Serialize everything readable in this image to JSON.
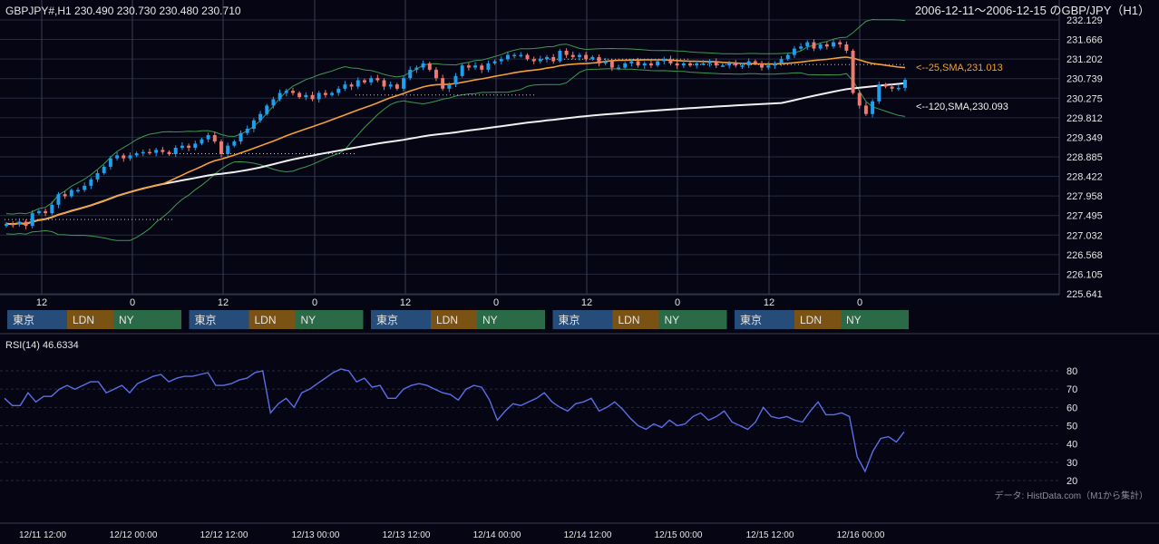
{
  "header": {
    "symbol_line": "GBPJPY#,H1 230.490 230.730 230.480 230.710",
    "range_title": "2006-12-11～2006-12-15 のGBP/JPY（H1）"
  },
  "colors": {
    "background": "#050514",
    "bull": "#1ea0f0",
    "bear": "#f07a6e",
    "sma25": "#f5a030",
    "sma120": "#f0f0f0",
    "bollinger": "#3c9a50",
    "rsi": "#5b6ee6",
    "grid": "#262a3e",
    "tokyo": "#264c7a",
    "london": "#7a5214",
    "newyork": "#2a6a46"
  },
  "sessions": {
    "tokyo": "東京",
    "london": "LDN",
    "newyork": "NY"
  },
  "price_axis": [
    "232.129",
    "231.666",
    "231.202",
    "230.739",
    "230.275",
    "229.812",
    "229.349",
    "228.885",
    "228.422",
    "227.958",
    "227.495",
    "227.032",
    "226.568",
    "226.105",
    "225.641"
  ],
  "hour_axis": [
    "12",
    "0",
    "12",
    "0",
    "12",
    "0",
    "12",
    "0",
    "12",
    "0"
  ],
  "date_axis": [
    "12/11 12:00",
    "12/12 00:00",
    "12/12 12:00",
    "12/13 00:00",
    "12/13 12:00",
    "12/14 00:00",
    "12/14 12:00",
    "12/15 00:00",
    "12/15 12:00",
    "12/16 00:00"
  ],
  "ma_labels": {
    "sma25": "<--25,SMA,231.013",
    "sma120": "<--120,SMA,230.093"
  },
  "rsi": {
    "label": "RSI(14) 46.6334",
    "ticks": [
      "80",
      "70",
      "60",
      "50",
      "40",
      "30",
      "20"
    ]
  },
  "source": "データ: HistData.com（M1から集計）",
  "chart_data": {
    "type": "candlestick",
    "title": "2006-12-11～2006-12-15 のGBP/JPY（H1）",
    "ylim": [
      225.641,
      232.129
    ],
    "close_series": [
      227.3,
      227.28,
      227.35,
      227.25,
      227.55,
      227.6,
      227.55,
      227.75,
      228.0,
      227.95,
      228.1,
      228.1,
      228.2,
      228.35,
      228.5,
      228.65,
      228.85,
      228.92,
      228.85,
      228.92,
      228.97,
      229.0,
      228.98,
      229.05,
      229.0,
      228.95,
      229.1,
      229.15,
      229.1,
      229.2,
      229.3,
      229.4,
      229.25,
      228.95,
      229.15,
      229.25,
      229.45,
      229.55,
      229.75,
      229.9,
      230.1,
      230.25,
      230.4,
      230.45,
      230.4,
      230.3,
      230.35,
      230.25,
      230.4,
      230.35,
      230.4,
      230.5,
      230.6,
      230.55,
      230.7,
      230.65,
      230.75,
      230.7,
      230.55,
      230.6,
      230.5,
      230.75,
      230.95,
      231.0,
      231.1,
      230.95,
      230.75,
      230.5,
      230.6,
      230.8,
      231.05,
      231.0,
      231.05,
      230.95,
      231.1,
      231.15,
      231.2,
      231.3,
      231.3,
      231.3,
      231.2,
      231.15,
      231.2,
      231.25,
      231.15,
      231.4,
      231.3,
      231.25,
      231.3,
      231.2,
      231.25,
      231.1,
      231.15,
      231.0,
      231.0,
      231.1,
      231.15,
      231.05,
      231.1,
      231.05,
      231.15,
      231.2,
      231.1,
      231.05,
      231.1,
      231.05,
      231.1,
      231.1,
      231.15,
      231.05,
      231.05,
      231.1,
      231.05,
      231.05,
      231.15,
      231.1,
      231.0,
      231.05,
      231.1,
      231.2,
      231.3,
      231.45,
      231.5,
      231.6,
      231.45,
      231.55,
      231.5,
      231.6,
      231.55,
      231.4,
      230.4,
      230.1,
      229.9,
      230.2,
      230.6,
      230.55,
      230.5,
      230.52,
      230.71
    ],
    "sma25_last": 231.013,
    "sma120_last": 230.093,
    "rsi_values": [
      65,
      61,
      61,
      68,
      63,
      66,
      66,
      70,
      72,
      70,
      72,
      74,
      74,
      68,
      70,
      72,
      68,
      73,
      75,
      77,
      78,
      74,
      76,
      77,
      77,
      78,
      79,
      72,
      72,
      73,
      75,
      76,
      79,
      80,
      57,
      62,
      65,
      60,
      68,
      70,
      73,
      76,
      79,
      81,
      80,
      74,
      76,
      71,
      72,
      65,
      65,
      70,
      72,
      73,
      72,
      70,
      68,
      67,
      64,
      70,
      72,
      71,
      64,
      53,
      58,
      62,
      61,
      63,
      65,
      68,
      63,
      60,
      58,
      62,
      63,
      65,
      58,
      60,
      63,
      59,
      54,
      50,
      48,
      51,
      49,
      53,
      50,
      51,
      55,
      57,
      53,
      55,
      58,
      52,
      50,
      48,
      52,
      60,
      55,
      54,
      55,
      53,
      52,
      58,
      63,
      56,
      56,
      57,
      55,
      33,
      25,
      36,
      43,
      44,
      41,
      46.6334
    ]
  }
}
